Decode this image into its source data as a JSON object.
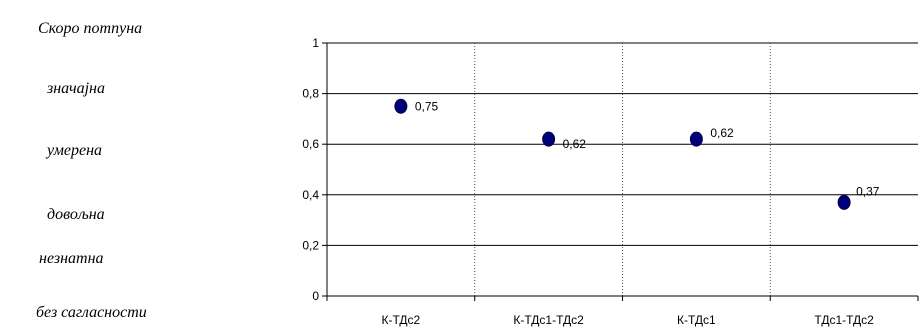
{
  "agreement_scale": [
    "Скоро потпуна",
    "значајна",
    "умерена",
    "довољна",
    "незнатна",
    "без сагласности"
  ],
  "chart_data": {
    "type": "scatter",
    "categories": [
      "К-ТДс2",
      "К-ТДс1-ТДс2",
      "К-ТДс1",
      "ТДс1-ТДс2"
    ],
    "values": [
      0.75,
      0.62,
      0.62,
      0.37
    ],
    "data_labels": [
      "0,75",
      "0,62",
      "0,62",
      "0,37"
    ],
    "yticks": [
      0,
      0.2,
      0.4,
      0.6,
      0.8,
      1
    ],
    "ytick_labels": [
      "0",
      "0,2",
      "0,4",
      "0,6",
      "0,8",
      "1"
    ],
    "ylim": [
      0,
      1
    ],
    "title": "",
    "xlabel": "",
    "ylabel": "",
    "marker_color": "#00007a",
    "grid": true
  }
}
